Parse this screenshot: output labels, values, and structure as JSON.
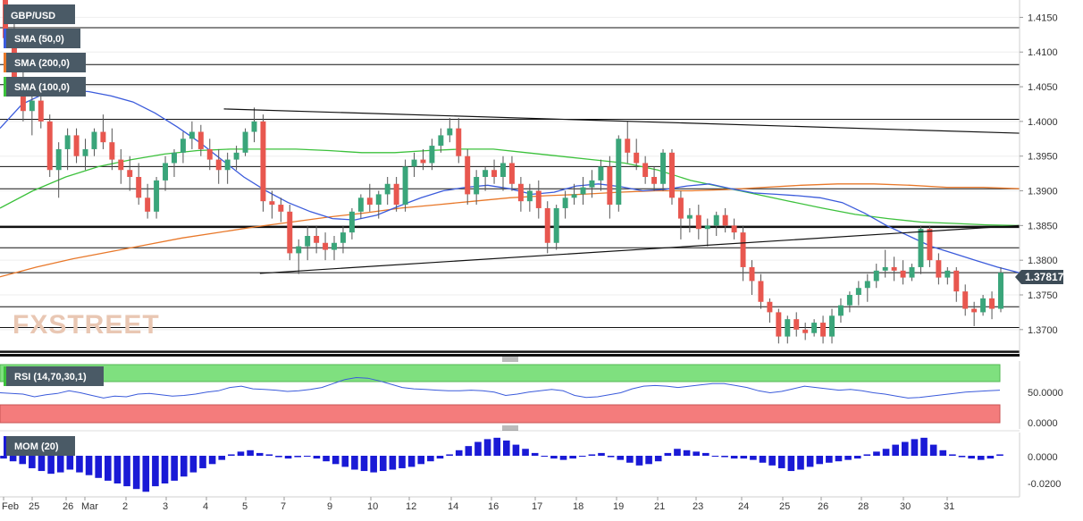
{
  "chart_data": [
    {
      "type": "candlestick",
      "symbol": "GBP/USD",
      "price_axis_ticks": [
        "1.4150",
        "1.4100",
        "1.4050",
        "1.4000",
        "1.3950",
        "1.3900",
        "1.3850",
        "1.3800",
        "1.3750",
        "1.3700"
      ],
      "y_range": [
        1.3665,
        1.4175
      ],
      "last_price_label": "1.37817",
      "last_price": 1.37817,
      "x_tick_labels": [
        "Feb",
        "25",
        "26",
        "Mar",
        "2",
        "3",
        "4",
        "5",
        "7",
        "9",
        "10",
        "12",
        "14",
        "16",
        "17",
        "18",
        "19",
        "21",
        "23",
        "24",
        "25",
        "26",
        "28",
        "30",
        "31"
      ],
      "indicator_labels": [
        "SMA (50,0)",
        "SMA (200,0)",
        "SMA (100,0)"
      ],
      "indicator_colors": {
        "sma50": "#3b5bdb",
        "sma200": "#e8782a",
        "sma100": "#3cc13c"
      },
      "candle_colors": {
        "up": "#3aa57a",
        "down": "#e8574f"
      },
      "horizontal_levels": [
        1.4135,
        1.4082,
        1.4053,
        1.4003,
        1.3935,
        1.3903,
        1.3848,
        1.3818,
        1.3782,
        1.3733,
        1.3703,
        1.3668
      ],
      "trendlines": [
        {
          "from_time": 56,
          "from_price": 1.4018,
          "to_time": 255,
          "to_price": 1.3983
        },
        {
          "from_time": 65,
          "from_price": 1.3781,
          "to_time": 255,
          "to_price": 1.385
        }
      ],
      "candles_ohlc": [
        [
          1.418,
          1.4185,
          1.411,
          1.412
        ],
        [
          1.412,
          1.415,
          1.404,
          1.406
        ],
        [
          1.406,
          1.408,
          1.4,
          1.4015
        ],
        [
          1.4015,
          1.404,
          1.398,
          1.403
        ],
        [
          1.403,
          1.4045,
          1.399,
          1.4
        ],
        [
          1.4,
          1.401,
          1.392,
          1.393
        ],
        [
          1.393,
          1.397,
          1.389,
          1.396
        ],
        [
          1.396,
          1.399,
          1.393,
          1.398
        ],
        [
          1.398,
          1.399,
          1.394,
          1.395
        ],
        [
          1.395,
          1.3975,
          1.393,
          1.396
        ],
        [
          1.396,
          1.399,
          1.395,
          1.3985
        ],
        [
          1.3985,
          1.401,
          1.396,
          1.397
        ],
        [
          1.397,
          1.399,
          1.393,
          1.3945
        ],
        [
          1.3945,
          1.396,
          1.391,
          1.393
        ],
        [
          1.393,
          1.395,
          1.39,
          1.392
        ],
        [
          1.392,
          1.394,
          1.388,
          1.389
        ],
        [
          1.389,
          1.391,
          1.386,
          1.387
        ],
        [
          1.387,
          1.392,
          1.386,
          1.3915
        ],
        [
          1.3915,
          1.395,
          1.39,
          1.394
        ],
        [
          1.394,
          1.396,
          1.392,
          1.3955
        ],
        [
          1.3955,
          1.3985,
          1.394,
          1.3975
        ],
        [
          1.3975,
          1.4,
          1.396,
          1.3985
        ],
        [
          1.3985,
          1.3995,
          1.395,
          1.396
        ],
        [
          1.396,
          1.3975,
          1.393,
          1.3945
        ],
        [
          1.3945,
          1.396,
          1.391,
          1.393
        ],
        [
          1.393,
          1.3955,
          1.391,
          1.3945
        ],
        [
          1.3945,
          1.3965,
          1.393,
          1.3955
        ],
        [
          1.3955,
          1.399,
          1.395,
          1.3985
        ],
        [
          1.3985,
          1.402,
          1.397,
          1.4
        ],
        [
          1.4,
          1.401,
          1.387,
          1.3885
        ],
        [
          1.3885,
          1.39,
          1.386,
          1.388
        ],
        [
          1.388,
          1.389,
          1.3855,
          1.387
        ],
        [
          1.387,
          1.388,
          1.38,
          1.381
        ],
        [
          1.381,
          1.383,
          1.378,
          1.382
        ],
        [
          1.382,
          1.385,
          1.38,
          1.3835
        ],
        [
          1.3835,
          1.385,
          1.381,
          1.3825
        ],
        [
          1.3825,
          1.384,
          1.38,
          1.3815
        ],
        [
          1.3815,
          1.3835,
          1.38,
          1.3825
        ],
        [
          1.3825,
          1.385,
          1.381,
          1.384
        ],
        [
          1.384,
          1.3875,
          1.383,
          1.387
        ],
        [
          1.387,
          1.3895,
          1.386,
          1.389
        ],
        [
          1.389,
          1.391,
          1.387,
          1.388
        ],
        [
          1.388,
          1.39,
          1.386,
          1.3895
        ],
        [
          1.3895,
          1.392,
          1.388,
          1.391
        ],
        [
          1.391,
          1.392,
          1.387,
          1.388
        ],
        [
          1.388,
          1.3945,
          1.387,
          1.3935
        ],
        [
          1.3935,
          1.3955,
          1.392,
          1.3945
        ],
        [
          1.3945,
          1.396,
          1.393,
          1.394
        ],
        [
          1.394,
          1.3975,
          1.393,
          1.3965
        ],
        [
          1.3965,
          1.399,
          1.3955,
          1.398
        ],
        [
          1.398,
          1.4005,
          1.397,
          1.399
        ],
        [
          1.399,
          1.4005,
          1.394,
          1.395
        ],
        [
          1.395,
          1.396,
          1.388,
          1.3895
        ],
        [
          1.3895,
          1.393,
          1.388,
          1.392
        ],
        [
          1.392,
          1.3935,
          1.39,
          1.393
        ],
        [
          1.393,
          1.3945,
          1.391,
          1.392
        ],
        [
          1.392,
          1.395,
          1.39,
          1.394
        ],
        [
          1.394,
          1.395,
          1.39,
          1.391
        ],
        [
          1.391,
          1.392,
          1.387,
          1.3885
        ],
        [
          1.3885,
          1.391,
          1.387,
          1.39
        ],
        [
          1.39,
          1.3915,
          1.386,
          1.3875
        ],
        [
          1.3875,
          1.3885,
          1.381,
          1.3825
        ],
        [
          1.3825,
          1.388,
          1.3815,
          1.3875
        ],
        [
          1.3875,
          1.39,
          1.386,
          1.389
        ],
        [
          1.389,
          1.391,
          1.388,
          1.3895
        ],
        [
          1.3895,
          1.392,
          1.388,
          1.3905
        ],
        [
          1.3905,
          1.393,
          1.389,
          1.3915
        ],
        [
          1.3915,
          1.3945,
          1.39,
          1.3935
        ],
        [
          1.3935,
          1.395,
          1.386,
          1.388
        ],
        [
          1.388,
          1.398,
          1.387,
          1.3975
        ],
        [
          1.3975,
          1.4,
          1.394,
          1.3955
        ],
        [
          1.3955,
          1.3975,
          1.393,
          1.394
        ],
        [
          1.394,
          1.395,
          1.391,
          1.392
        ],
        [
          1.392,
          1.3935,
          1.39,
          1.391
        ],
        [
          1.391,
          1.396,
          1.39,
          1.3955
        ],
        [
          1.3955,
          1.396,
          1.388,
          1.389
        ],
        [
          1.389,
          1.39,
          1.383,
          1.386
        ],
        [
          1.386,
          1.3875,
          1.384,
          1.3865
        ],
        [
          1.3865,
          1.388,
          1.383,
          1.3845
        ],
        [
          1.3845,
          1.386,
          1.382,
          1.385
        ],
        [
          1.385,
          1.387,
          1.3835,
          1.3865
        ],
        [
          1.3865,
          1.3875,
          1.384,
          1.385
        ],
        [
          1.385,
          1.386,
          1.383,
          1.384
        ],
        [
          1.384,
          1.385,
          1.377,
          1.379
        ],
        [
          1.379,
          1.38,
          1.375,
          1.377
        ],
        [
          1.377,
          1.378,
          1.373,
          1.374
        ],
        [
          1.374,
          1.3745,
          1.371,
          1.3725
        ],
        [
          1.3725,
          1.373,
          1.368,
          1.369
        ],
        [
          1.369,
          1.372,
          1.368,
          1.3715
        ],
        [
          1.3715,
          1.3725,
          1.369,
          1.37
        ],
        [
          1.37,
          1.371,
          1.3685,
          1.3695
        ],
        [
          1.3695,
          1.3715,
          1.369,
          1.371
        ],
        [
          1.371,
          1.372,
          1.368,
          1.369
        ],
        [
          1.369,
          1.373,
          1.368,
          1.372
        ],
        [
          1.372,
          1.3745,
          1.371,
          1.3735
        ],
        [
          1.3735,
          1.3755,
          1.3725,
          1.375
        ],
        [
          1.375,
          1.377,
          1.3735,
          1.376
        ],
        [
          1.376,
          1.378,
          1.374,
          1.377
        ],
        [
          1.377,
          1.3795,
          1.376,
          1.3785
        ],
        [
          1.3785,
          1.3815,
          1.3775,
          1.379
        ],
        [
          1.379,
          1.3805,
          1.377,
          1.3785
        ],
        [
          1.3785,
          1.38,
          1.3765,
          1.3775
        ],
        [
          1.3775,
          1.3795,
          1.377,
          1.379
        ],
        [
          1.379,
          1.385,
          1.378,
          1.3845
        ],
        [
          1.3845,
          1.385,
          1.379,
          1.38
        ],
        [
          1.38,
          1.381,
          1.3765,
          1.3775
        ],
        [
          1.3775,
          1.379,
          1.3765,
          1.3785
        ],
        [
          1.3785,
          1.379,
          1.374,
          1.3755
        ],
        [
          1.3755,
          1.3765,
          1.372,
          1.373
        ],
        [
          1.373,
          1.374,
          1.3705,
          1.3725
        ],
        [
          1.3725,
          1.375,
          1.372,
          1.3745
        ],
        [
          1.3745,
          1.3755,
          1.3715,
          1.373
        ],
        [
          1.373,
          1.379,
          1.3725,
          1.3782
        ]
      ],
      "sma50": [
        1.399,
        1.4025,
        1.404,
        1.4045,
        1.4043,
        1.4037,
        1.4028,
        1.4012,
        1.3992,
        1.397,
        1.3945,
        1.392,
        1.39,
        1.3883,
        1.387,
        1.386,
        1.3858,
        1.3865,
        1.3878,
        1.389,
        1.39,
        1.3905,
        1.3908,
        1.3903,
        1.3895,
        1.3898,
        1.3907,
        1.391,
        1.3906,
        1.39,
        1.3902,
        1.3907,
        1.391,
        1.3903,
        1.3897,
        1.3895,
        1.3893,
        1.389,
        1.3883,
        1.3868,
        1.385,
        1.3835,
        1.382,
        1.381,
        1.38,
        1.379,
        1.3782
      ],
      "sma200": [
        1.3776,
        1.379,
        1.3802,
        1.3812,
        1.3822,
        1.3832,
        1.384,
        1.3848,
        1.3855,
        1.3862,
        1.3868,
        1.3875,
        1.388,
        1.3885,
        1.389,
        1.3893,
        1.3895,
        1.3898,
        1.39,
        1.39,
        1.3902,
        1.3905,
        1.3908,
        1.391,
        1.391,
        1.3908,
        1.3905,
        1.3905,
        1.3903
      ],
      "sma100": [
        1.3875,
        1.39,
        1.392,
        1.3935,
        1.3945,
        1.3953,
        1.3958,
        1.396,
        1.396,
        1.396,
        1.3958,
        1.3955,
        1.3955,
        1.3958,
        1.396,
        1.396,
        1.3955,
        1.395,
        1.3945,
        1.394,
        1.393,
        1.3915,
        1.3905,
        1.3895,
        1.3885,
        1.3875,
        1.3866,
        1.386,
        1.3855,
        1.3853,
        1.3851,
        1.385
      ]
    },
    {
      "type": "line",
      "label": "RSI (14,70,30,1)",
      "y_ticks": [
        "50.0000",
        "0.0000"
      ],
      "values": [
        52,
        51,
        50,
        46,
        49,
        51,
        55,
        52,
        48,
        44,
        47,
        46,
        50,
        51,
        49,
        47,
        48,
        50,
        53,
        55,
        60,
        62,
        58,
        57,
        56,
        54,
        55,
        57,
        60,
        66,
        72,
        75,
        74,
        70,
        65,
        60,
        58,
        57,
        56,
        55,
        55,
        56,
        55,
        53,
        48,
        50,
        53,
        55,
        57,
        55,
        48,
        45,
        46,
        49,
        52,
        58,
        62,
        63,
        62,
        60,
        62,
        64,
        66,
        66,
        63,
        60,
        55,
        52,
        54,
        58,
        62,
        60,
        58,
        56,
        57,
        55,
        52,
        50,
        47,
        44,
        45,
        47,
        49,
        51,
        53,
        54,
        55,
        56
      ],
      "overbought_color": "#7fe07f",
      "oversold_color": "#f47c7c",
      "line_color": "#3b5bdb"
    },
    {
      "type": "bar",
      "label": "MOM (20)",
      "y_ticks": [
        "0.0000",
        "-0.0200"
      ],
      "values": [
        -0.002,
        -0.004,
        -0.006,
        -0.009,
        -0.011,
        -0.013,
        -0.012,
        -0.01,
        -0.012,
        -0.014,
        -0.016,
        -0.018,
        -0.02,
        -0.022,
        -0.024,
        -0.026,
        -0.022,
        -0.02,
        -0.018,
        -0.015,
        -0.012,
        -0.009,
        -0.006,
        -0.003,
        0.001,
        0.003,
        0.004,
        0.002,
        0.001,
        -0.001,
        -0.002,
        -0.001,
        0.0,
        -0.002,
        -0.004,
        -0.006,
        -0.008,
        -0.01,
        -0.011,
        -0.012,
        -0.011,
        -0.01,
        -0.009,
        -0.008,
        -0.006,
        -0.004,
        -0.002,
        0.001,
        0.004,
        0.007,
        0.01,
        0.012,
        0.013,
        0.011,
        0.008,
        0.005,
        0.002,
        0.0,
        -0.002,
        -0.003,
        -0.002,
        0.0,
        0.001,
        0.002,
        -0.001,
        -0.003,
        -0.005,
        -0.007,
        -0.006,
        -0.004,
        0.002,
        0.005,
        0.004,
        0.003,
        0.002,
        0.0,
        -0.001,
        -0.002,
        -0.002,
        -0.003,
        -0.005,
        -0.007,
        -0.009,
        -0.011,
        -0.01,
        -0.008,
        -0.006,
        -0.005,
        -0.004,
        -0.003,
        -0.002,
        0.001,
        0.003,
        0.005,
        0.008,
        0.01,
        0.012,
        0.013,
        0.008,
        0.004,
        0.001,
        -0.001,
        -0.002,
        -0.003,
        -0.002,
        0.001
      ],
      "bar_color": "#1a1ad6"
    }
  ],
  "watermark": "FXSTREET"
}
